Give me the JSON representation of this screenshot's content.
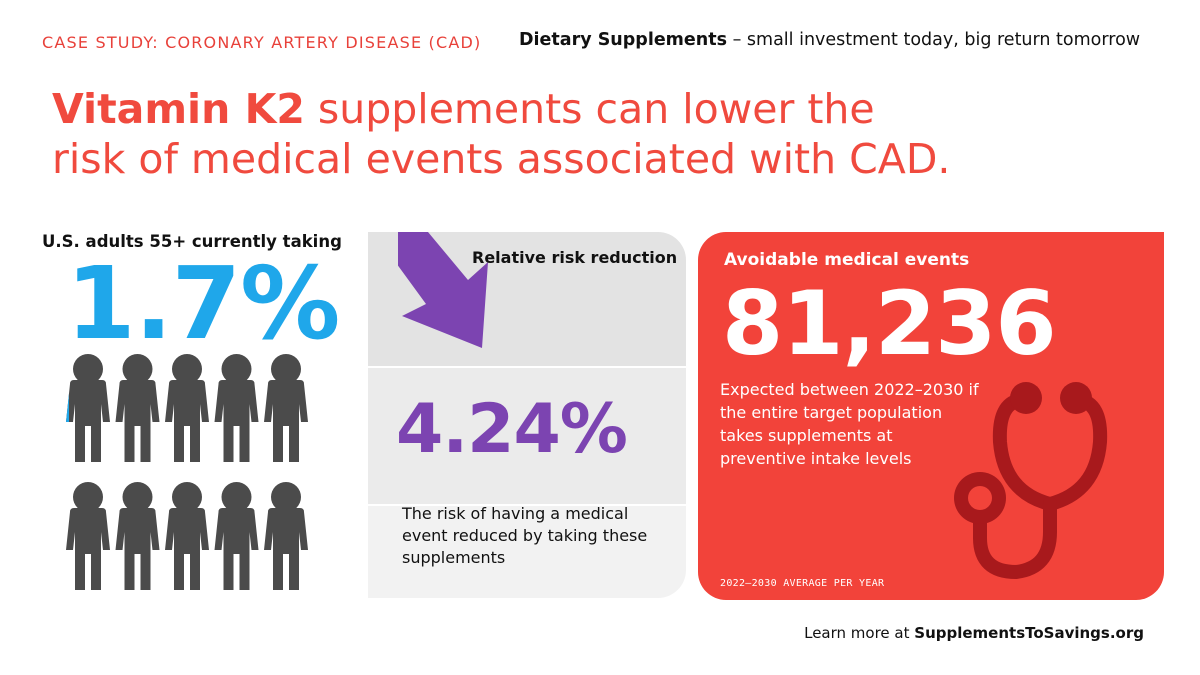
{
  "header": {
    "case_study": "CASE STUDY: CORONARY ARTERY DISEASE (CAD)",
    "tagline_bold": "Dietary Supplements",
    "tagline_rest": " – small investment today, big return tomorrow"
  },
  "headline": {
    "bold": "Vitamin K2",
    "line1_rest": " supplements can lower the",
    "line2": "risk of medical events associated with CAD."
  },
  "adults": {
    "label": "U.S. adults 55+ currently taking",
    "value": "1.7%",
    "fraction": 0.017,
    "icon": "person-icon"
  },
  "risk_reduction": {
    "label": "Relative risk reduction",
    "value": "4.24%",
    "description": "The risk of having a medical event reduced by taking these supplements",
    "icon": "down-arrow-icon"
  },
  "avoidable": {
    "label": "Avoidable medical events",
    "value": "81,236",
    "description": "Expected between 2022–2030 if the entire target population takes supplements at preventive intake levels",
    "footnote": "2022–2030 AVERAGE PER YEAR",
    "icon": "stethoscope-icon"
  },
  "footer": {
    "prefix": "Learn more at ",
    "site": "SupplementsToSavings.org"
  },
  "colors": {
    "accent_red": "#f04a3e",
    "blue": "#1fa7ea",
    "purple": "#7c44b1",
    "panel_red": "#f2433a",
    "person_gray": "#4b4b4b",
    "stethoscope_dark": "#a8191c"
  }
}
